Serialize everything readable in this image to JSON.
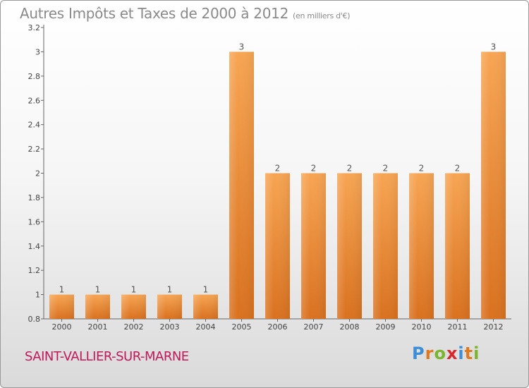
{
  "header": {
    "title": "Autres Impôts et Taxes de 2000 à 2012",
    "unit": "(en milliers d'€)"
  },
  "footer": {
    "city": "SAINT-VALLIER-SUR-MARNE",
    "logo_letters": [
      {
        "char": "P",
        "color": "#3a8fd8"
      },
      {
        "char": "r",
        "color": "#e07820"
      },
      {
        "char": "o",
        "color": "#7ab52e"
      },
      {
        "char": "x",
        "color": "#d8262a"
      },
      {
        "char": "i",
        "color": "#3a8fd8"
      },
      {
        "char": "t",
        "color": "#e07820"
      },
      {
        "char": "i",
        "color": "#7ab52e"
      }
    ]
  },
  "colors": {
    "bar_top": "#f7a553",
    "bar_bottom": "#d9711f",
    "axis": "#666666",
    "grid": "#dddddd",
    "city": "#c0185a"
  },
  "chart_data": {
    "type": "bar",
    "categories": [
      "2000",
      "2001",
      "2002",
      "2003",
      "2004",
      "2005",
      "2006",
      "2007",
      "2008",
      "2009",
      "2010",
      "2011",
      "2012"
    ],
    "values": [
      1,
      1,
      1,
      1,
      1,
      3,
      2,
      2,
      2,
      2,
      2,
      2,
      3
    ],
    "data_labels": [
      "1",
      "1",
      "1",
      "1",
      "1",
      "3",
      "2",
      "2",
      "2",
      "2",
      "2",
      "2",
      "3"
    ],
    "title": "Autres Impôts et Taxes de 2000 à 2012",
    "ylim": [
      0.8,
      3.2
    ],
    "yticks": [
      0.8,
      1,
      1.2,
      1.4,
      1.6,
      1.8,
      2,
      2.2,
      2.4,
      2.6,
      2.8,
      3,
      3.2
    ],
    "ytick_labels": [
      "0.8",
      "1",
      "1.2",
      "1.4",
      "1.6",
      "1.8",
      "2",
      "2.2",
      "2.4",
      "2.6",
      "2.8",
      "3",
      "3.2"
    ],
    "grid": false
  }
}
